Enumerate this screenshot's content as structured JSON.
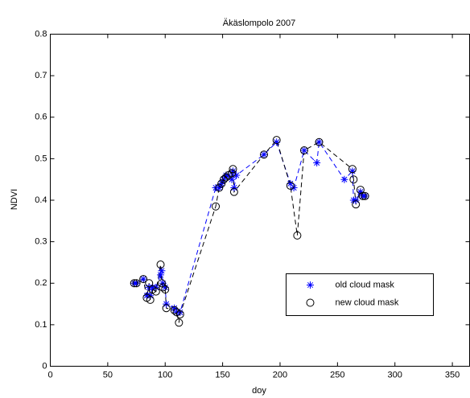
{
  "chart_data": {
    "type": "line",
    "title": "Äkäslompolo 2007",
    "x_label": "doy",
    "y_label": "NDVI",
    "xlim": [
      0,
      365
    ],
    "ylim": [
      0,
      0.8
    ],
    "xticks": [
      0,
      50,
      100,
      150,
      200,
      250,
      300,
      350
    ],
    "yticks": [
      0,
      0.1,
      0.2,
      0.3,
      0.4,
      0.5,
      0.6,
      0.7,
      0.8
    ],
    "legend": "lower right",
    "series": [
      {
        "name": "old cloud mask",
        "color": "#0000ff",
        "marker": "star",
        "x": [
          73,
          75,
          81,
          84,
          86,
          87,
          89,
          92,
          96,
          97,
          98,
          100,
          101,
          108,
          110,
          113,
          144,
          147,
          149,
          151,
          153,
          155,
          158,
          159,
          160,
          162,
          186,
          197,
          209,
          212,
          221,
          232,
          234,
          256,
          263,
          264,
          266,
          270,
          272,
          274
        ],
        "values": [
          0.2,
          0.2,
          0.21,
          0.17,
          0.19,
          0.17,
          0.19,
          0.19,
          0.22,
          0.23,
          0.2,
          0.19,
          0.15,
          0.14,
          0.13,
          0.13,
          0.43,
          0.43,
          0.44,
          0.45,
          0.46,
          0.46,
          0.45,
          0.47,
          0.43,
          0.46,
          0.51,
          0.54,
          0.44,
          0.43,
          0.52,
          0.49,
          0.54,
          0.45,
          0.47,
          0.4,
          0.4,
          0.42,
          0.41,
          0.41
        ]
      },
      {
        "name": "new cloud mask",
        "color": "#000000",
        "marker": "circle",
        "x": [
          73,
          75,
          81,
          84,
          86,
          87,
          89,
          92,
          96,
          97,
          98,
          100,
          101,
          108,
          110,
          112,
          113,
          144,
          147,
          149,
          151,
          153,
          155,
          158,
          159,
          160,
          186,
          197,
          209,
          215,
          221,
          234,
          263,
          264,
          266,
          270,
          272,
          274
        ],
        "values": [
          0.2,
          0.2,
          0.21,
          0.165,
          0.2,
          0.16,
          0.185,
          0.18,
          0.245,
          0.2,
          0.19,
          0.185,
          0.14,
          0.135,
          0.13,
          0.105,
          0.125,
          0.385,
          0.43,
          0.44,
          0.45,
          0.455,
          0.46,
          0.465,
          0.475,
          0.42,
          0.51,
          0.545,
          0.435,
          0.315,
          0.52,
          0.54,
          0.475,
          0.45,
          0.39,
          0.425,
          0.41,
          0.41
        ]
      }
    ]
  }
}
